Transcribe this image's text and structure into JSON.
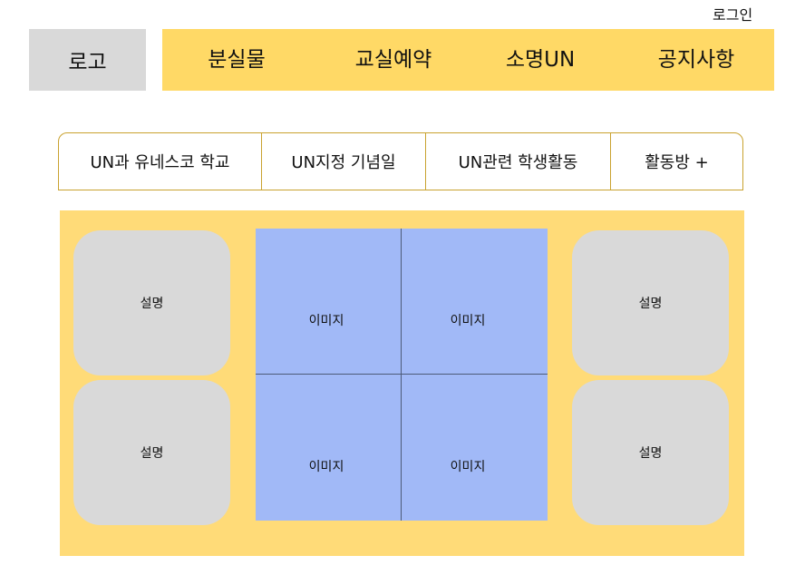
{
  "header": {
    "login_label": "로그인",
    "logo_label": "로고",
    "nav": [
      "분실물",
      "교실예약",
      "소명UN",
      "공지사항"
    ]
  },
  "subnav": {
    "items": [
      "UN과 유네스코 학교",
      "UN지정 기념일",
      "UN관련 학생활동",
      "활동방 +"
    ]
  },
  "content": {
    "desc_left_top": "설명",
    "desc_left_bottom": "설명",
    "desc_right_top": "설명",
    "desc_right_bottom": "설명",
    "images": [
      "이미지",
      "이미지",
      "이미지",
      "이미지"
    ]
  },
  "colors": {
    "nav_bg": "#ffd966",
    "content_bg": "#ffdb78",
    "logo_bg": "#d9d9d9",
    "desc_bg": "#d9d9d9",
    "gallery_bg": "#a1b9f7",
    "subnav_border": "#c9a22f"
  }
}
